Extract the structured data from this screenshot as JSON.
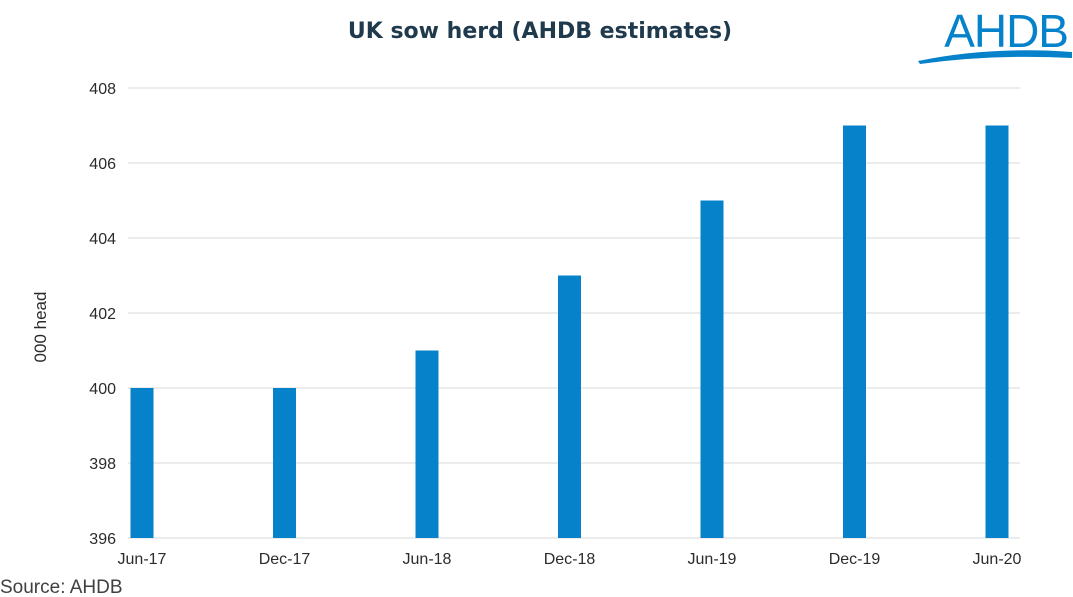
{
  "colors": {
    "bar": "#0582ca",
    "grid": "#d9d9d9",
    "title": "#1f3a4d",
    "logo": "#0582ca",
    "text": "#2b2b2b"
  },
  "logo": {
    "text": "AHDB",
    "icon": "ahdb-swoosh-logo"
  },
  "source": "Source: AHDB",
  "chart_data": {
    "type": "bar",
    "title": "UK sow herd (AHDB estimates)",
    "xlabel": "",
    "ylabel": "000 head",
    "categories": [
      "Jun-17",
      "Dec-17",
      "Jun-18",
      "Dec-18",
      "Jun-19",
      "Dec-19",
      "Jun-20"
    ],
    "values": [
      400,
      400,
      401,
      403,
      405,
      407,
      407
    ],
    "ylim": [
      396,
      408
    ],
    "yticks": [
      396,
      398,
      400,
      402,
      404,
      406,
      408
    ],
    "grid": true,
    "legend": "none"
  }
}
